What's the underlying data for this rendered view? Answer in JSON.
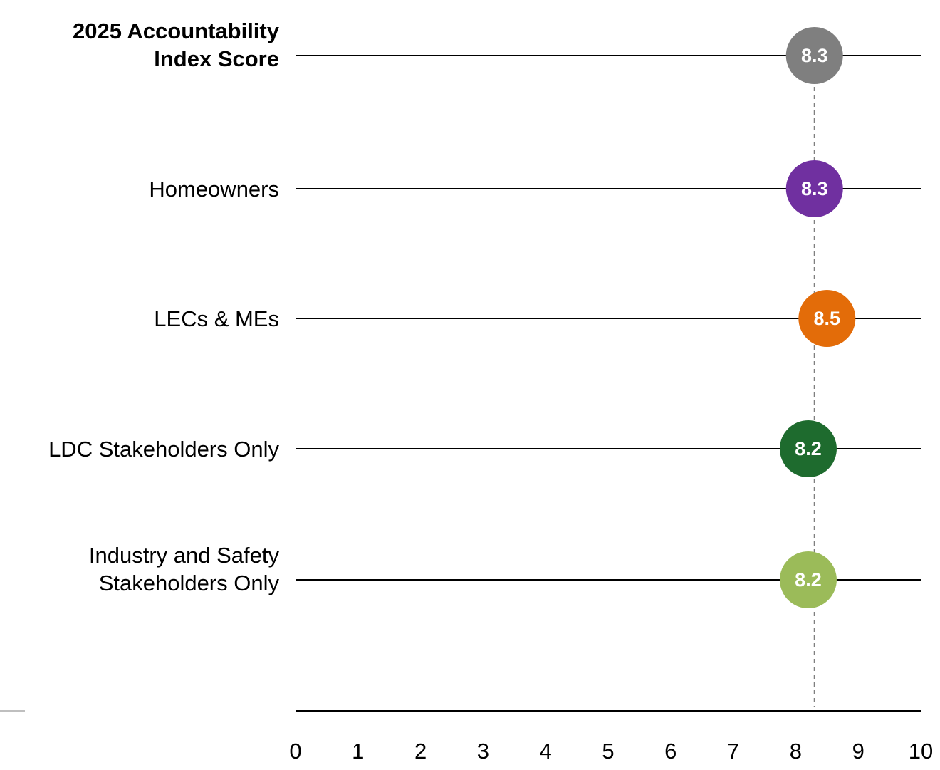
{
  "chart_data": {
    "type": "dot",
    "categories": [
      "2025 Accountability\nIndex Score",
      "Homeowners",
      "LECs & MEs",
      "LDC Stakeholders Only",
      "Industry and Safety\nStakeholders Only"
    ],
    "values": [
      8.3,
      8.3,
      8.5,
      8.2,
      8.2
    ],
    "colors": [
      "#7f7f7f",
      "#7030a0",
      "#e36c09",
      "#1e6b2e",
      "#9bbb59"
    ],
    "xlim": [
      0,
      10
    ],
    "xticks": [
      0,
      1,
      2,
      3,
      4,
      5,
      6,
      7,
      8,
      9,
      10
    ]
  }
}
